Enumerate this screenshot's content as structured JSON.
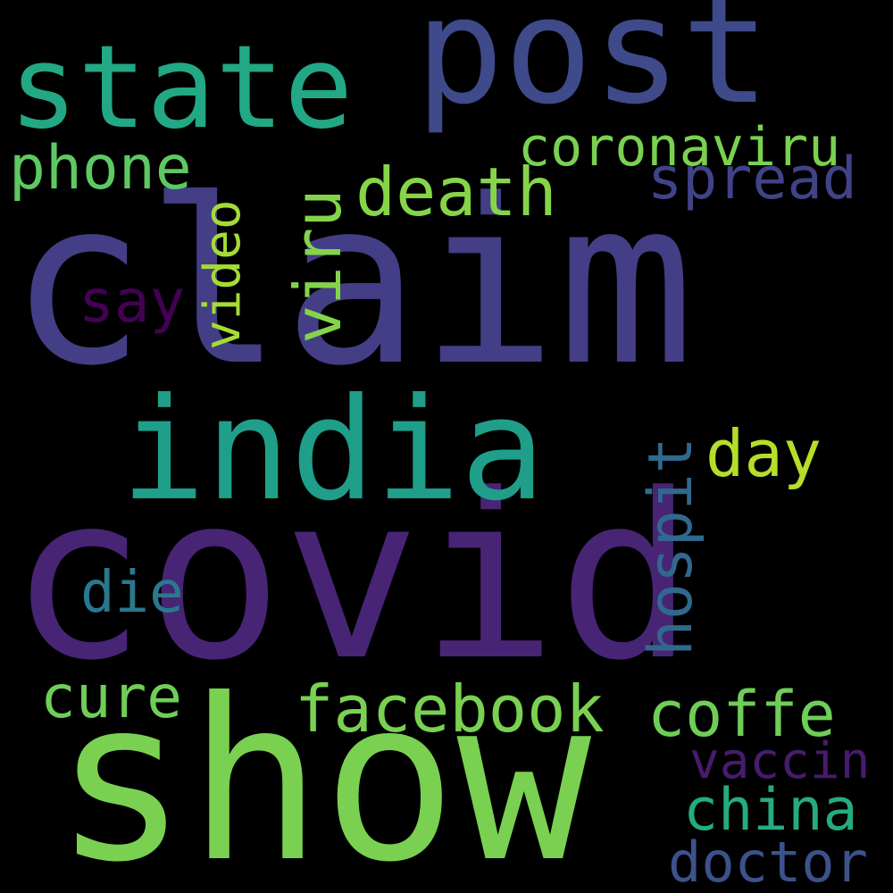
{
  "words": [
    {
      "key": "covid",
      "text": "covid",
      "color": "#482475"
    },
    {
      "key": "claim",
      "text": "claim",
      "color": "#433e85"
    },
    {
      "key": "show",
      "text": "show",
      "color": "#7ad151"
    },
    {
      "key": "post",
      "text": "post",
      "color": "#3e4a89"
    },
    {
      "key": "india",
      "text": "india",
      "color": "#1f9e89"
    },
    {
      "key": "state",
      "text": "state",
      "color": "#22a884"
    },
    {
      "key": "coronaviru",
      "text": "coronaviru",
      "color": "#7ad151"
    },
    {
      "key": "phone",
      "text": "phone",
      "color": "#5ec962"
    },
    {
      "key": "death",
      "text": "death",
      "color": "#86d549"
    },
    {
      "key": "spread",
      "text": "spread",
      "color": "#404387"
    },
    {
      "key": "viru",
      "text": "viru",
      "color": "#84d44b"
    },
    {
      "key": "video",
      "text": "video",
      "color": "#a5db36"
    },
    {
      "key": "say",
      "text": "say",
      "color": "#440154"
    },
    {
      "key": "day",
      "text": "day",
      "color": "#b5de2b"
    },
    {
      "key": "hospit",
      "text": "hospit",
      "color": "#31688e"
    },
    {
      "key": "die",
      "text": "die",
      "color": "#2a788e"
    },
    {
      "key": "cure",
      "text": "cure",
      "color": "#6ece58"
    },
    {
      "key": "facebook",
      "text": "facebook",
      "color": "#7ad151"
    },
    {
      "key": "coffe",
      "text": "coffe",
      "color": "#6ece58"
    },
    {
      "key": "vaccin",
      "text": "vaccin",
      "color": "#481b6d"
    },
    {
      "key": "china",
      "text": "china",
      "color": "#25ab82"
    },
    {
      "key": "doctor",
      "text": "doctor",
      "color": "#3b528b"
    }
  ]
}
